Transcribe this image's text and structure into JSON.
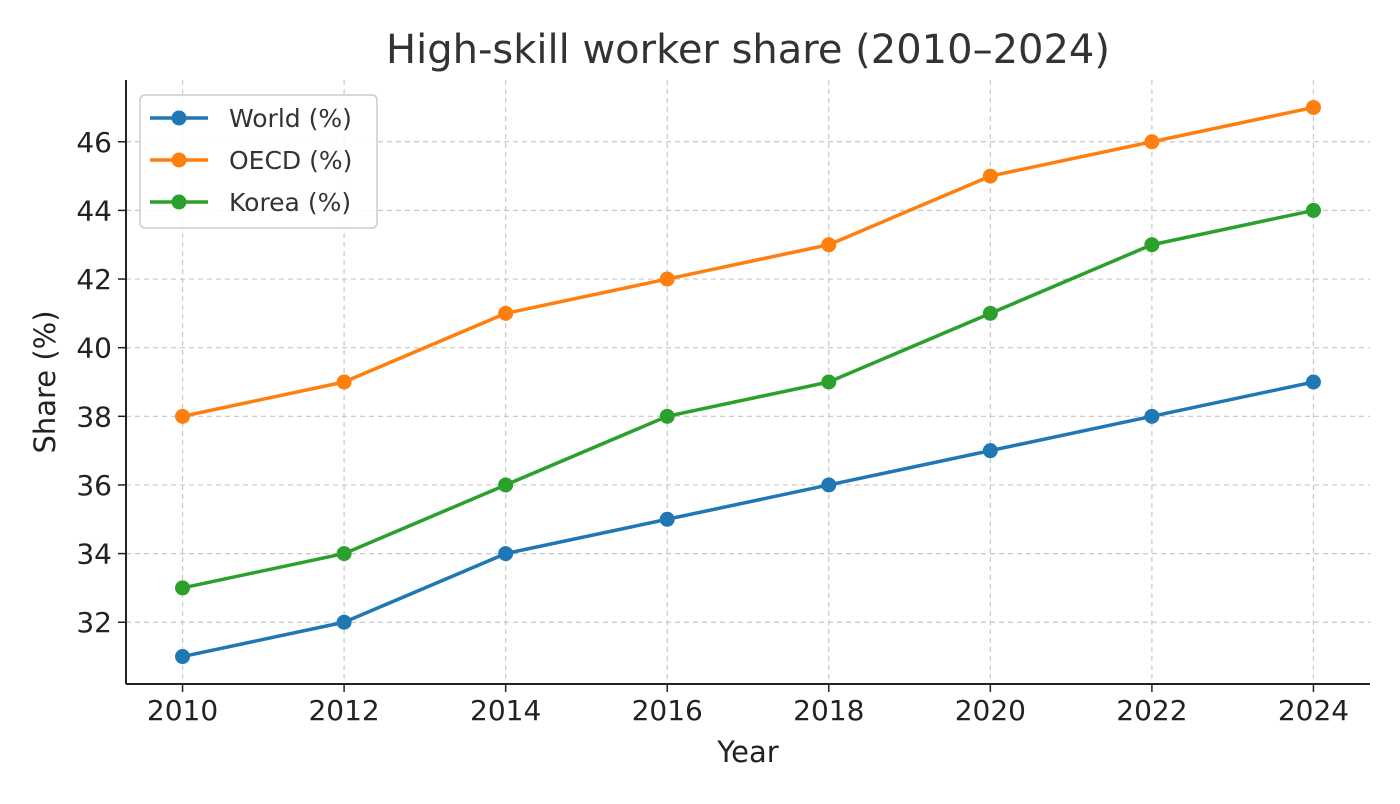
{
  "chart_data": {
    "type": "line",
    "title": "High-skill worker share (2010–2024)",
    "xlabel": "Year",
    "ylabel": "Share (%)",
    "x": [
      2010,
      2012,
      2014,
      2016,
      2018,
      2020,
      2022,
      2024
    ],
    "xticks": [
      "2010",
      "2012",
      "2014",
      "2016",
      "2018",
      "2020",
      "2022",
      "2024"
    ],
    "yticks": [
      "32",
      "34",
      "36",
      "38",
      "40",
      "42",
      "44",
      "46"
    ],
    "xlim": [
      2009.3,
      2024.7
    ],
    "ylim": [
      30.2,
      47.8
    ],
    "grid": true,
    "legend_position": "top-left",
    "series": [
      {
        "name": "World (%)",
        "color": "#1f77b4",
        "values": [
          31,
          32,
          34,
          35,
          36,
          37,
          38,
          39
        ]
      },
      {
        "name": "OECD (%)",
        "color": "#ff7f0e",
        "values": [
          38,
          39,
          41,
          42,
          43,
          45,
          46,
          47
        ]
      },
      {
        "name": "Korea (%)",
        "color": "#2ca02c",
        "values": [
          33,
          34,
          36,
          38,
          39,
          41,
          43,
          44
        ]
      }
    ]
  }
}
